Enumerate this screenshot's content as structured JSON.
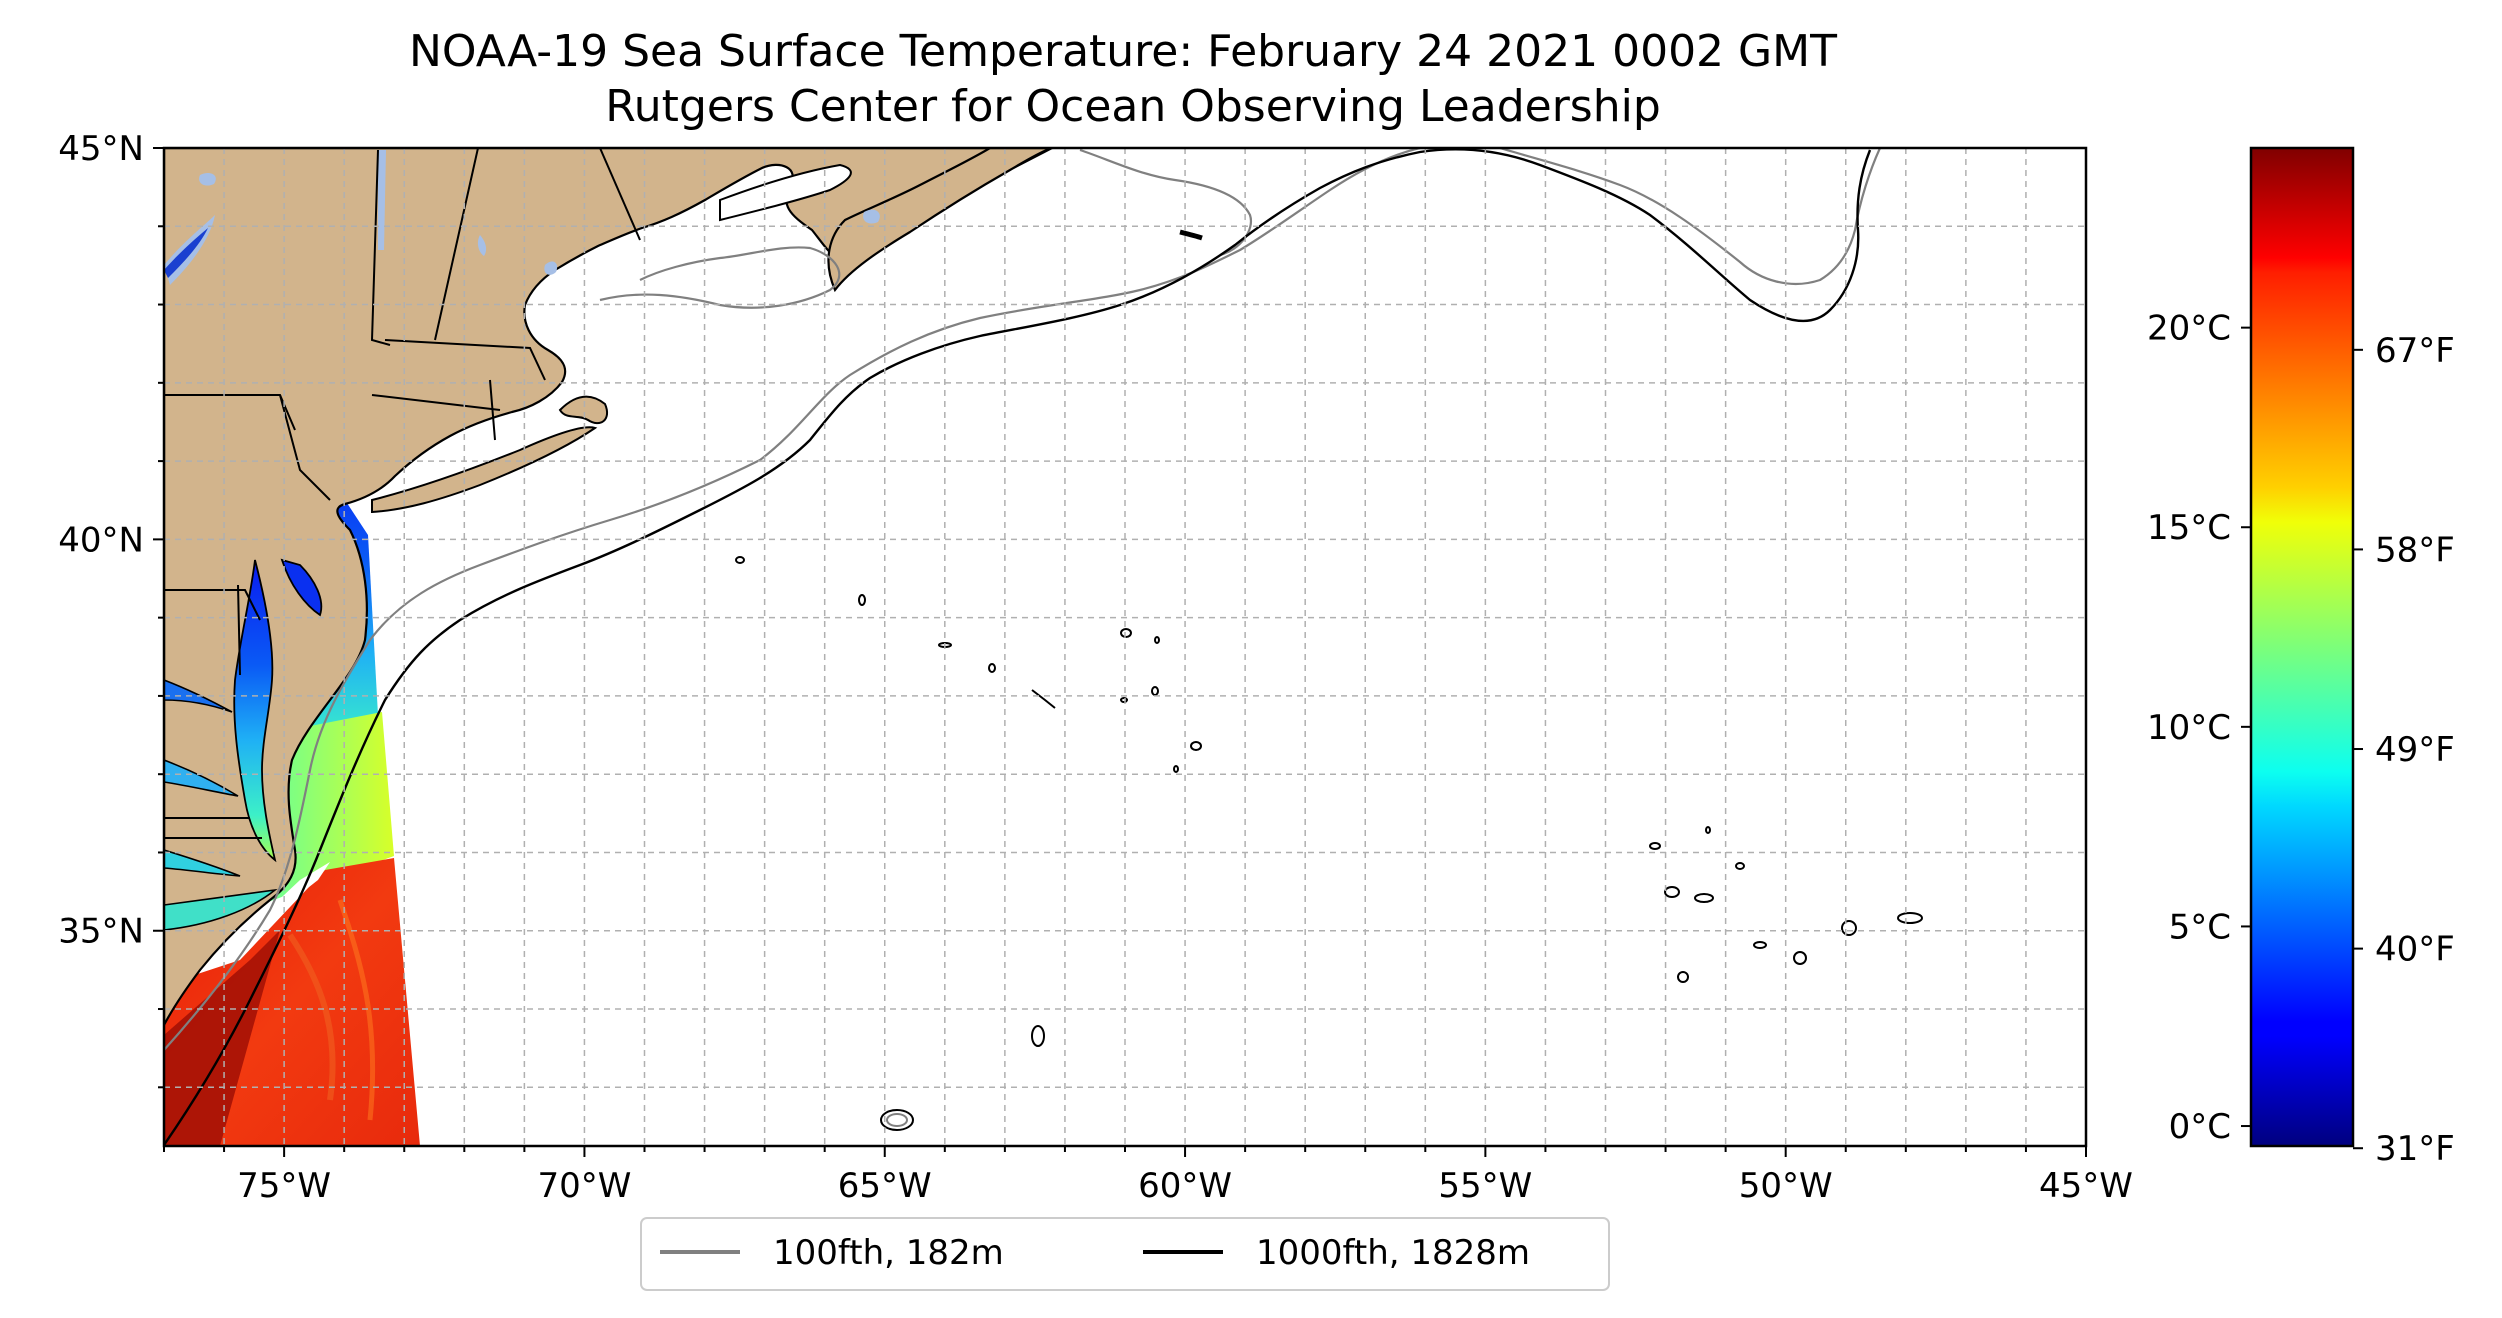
{
  "chart_data": {
    "type": "heatmap",
    "title": "NOAA-19 Sea Surface Temperature: February 24 2021 0002 GMT",
    "subtitle": "Rutgers Center for Ocean Observing Leadership",
    "xlim": [
      -77,
      -45
    ],
    "ylim": [
      32.25,
      45
    ],
    "grid": true,
    "x_ticks": [
      {
        "value": -75,
        "label": "75°W"
      },
      {
        "value": -70,
        "label": "70°W"
      },
      {
        "value": -65,
        "label": "65°W"
      },
      {
        "value": -60,
        "label": "60°W"
      },
      {
        "value": -55,
        "label": "55°W"
      },
      {
        "value": -50,
        "label": "50°W"
      },
      {
        "value": -45,
        "label": "45°W"
      }
    ],
    "y_ticks": [
      {
        "value": 45,
        "label": "45°N"
      },
      {
        "value": 40,
        "label": "40°N"
      },
      {
        "value": 35,
        "label": "35°N"
      }
    ],
    "colorbar": {
      "colormap": "jet",
      "range_c": [
        -0.5,
        24.5
      ],
      "celsius_ticks": [
        {
          "value": 0,
          "label": "0°C"
        },
        {
          "value": 5,
          "label": "5°C"
        },
        {
          "value": 10,
          "label": "10°C"
        },
        {
          "value": 15,
          "label": "15°C"
        },
        {
          "value": 20,
          "label": "20°C"
        }
      ],
      "fahrenheit_ticks": [
        {
          "value": 31,
          "label": "31°F"
        },
        {
          "value": 40,
          "label": "40°F"
        },
        {
          "value": 49,
          "label": "49°F"
        },
        {
          "value": 58,
          "label": "58°F"
        },
        {
          "value": 67,
          "label": "67°F"
        }
      ]
    },
    "legend": {
      "placement": "bottom-center",
      "entries": [
        {
          "label": "100fth, 182m",
          "color": "#808080"
        },
        {
          "label": "1000fth, 1828m",
          "color": "#000000"
        }
      ]
    },
    "colors": {
      "land": "#d2b48c",
      "lakes": "#a6bfe6",
      "ocean": "#ffffff"
    }
  }
}
